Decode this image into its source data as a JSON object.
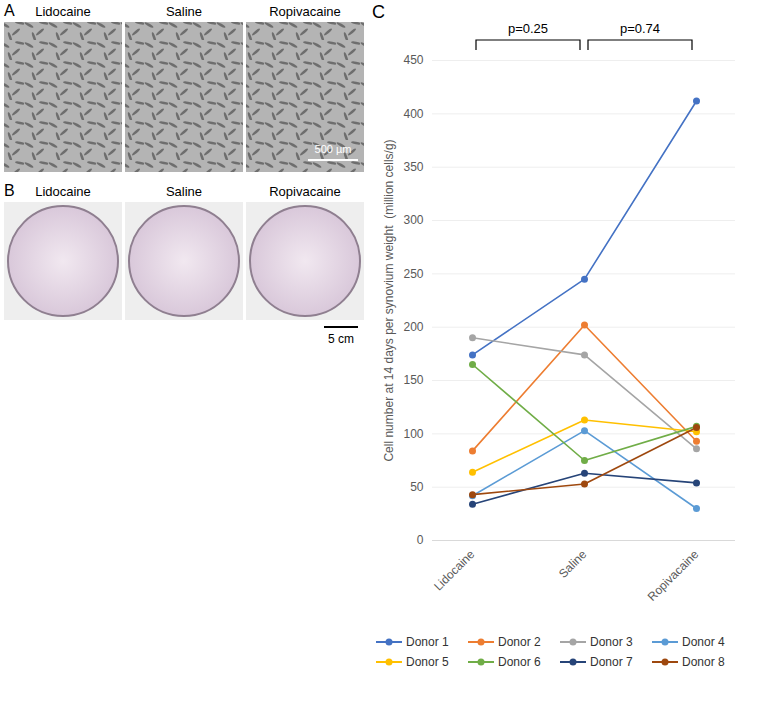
{
  "panels": [
    {
      "letter": "A",
      "captions": [
        "Lidocaine",
        "Saline",
        "Ropivacaine"
      ],
      "scale_bar": "500 µm"
    },
    {
      "letter": "B",
      "captions": [
        "Lidocaine",
        "Saline",
        "Ropivacaine"
      ],
      "scale_bar": "5 cm"
    }
  ],
  "chart_data": {
    "letter": "C",
    "type": "line",
    "ylabel": "Cell number at 14 days per synovium weight  (million cells/g)",
    "categories": [
      "Lidocaine",
      "Saline",
      "Ropivacaine"
    ],
    "series": [
      {
        "name": "Donor 1",
        "color": "#4472c4",
        "marker": "circle",
        "values": [
          174,
          245,
          412
        ]
      },
      {
        "name": "Donor 2",
        "color": "#ed7d31",
        "marker": "circle",
        "values": [
          84,
          202,
          93
        ]
      },
      {
        "name": "Donor 3",
        "color": "#a5a5a5",
        "marker": "circle",
        "values": [
          190,
          174,
          86
        ]
      },
      {
        "name": "Donor 4",
        "color": "#5b9bd5",
        "marker": "circle",
        "values": [
          42,
          103,
          30
        ]
      },
      {
        "name": "Donor 5",
        "color": "#ffc000",
        "marker": "circle",
        "values": [
          64,
          113,
          102
        ]
      },
      {
        "name": "Donor 6",
        "color": "#70ad47",
        "marker": "circle",
        "values": [
          165,
          75,
          107
        ]
      },
      {
        "name": "Donor 7",
        "color": "#264478",
        "marker": "circle",
        "values": [
          34,
          63,
          54
        ]
      },
      {
        "name": "Donor 8",
        "color": "#9e480e",
        "marker": "circle",
        "values": [
          43,
          53,
          106
        ]
      }
    ],
    "ylim": [
      0,
      450
    ],
    "yticks": [
      0,
      50,
      100,
      150,
      200,
      250,
      300,
      350,
      400,
      450
    ],
    "grid": true,
    "legend": "bottom",
    "annotations": [
      {
        "text": "p=0.25",
        "from": "Lidocaine",
        "to": "Saline"
      },
      {
        "text": "p=0.74",
        "from": "Saline",
        "to": "Ropivacaine"
      }
    ]
  }
}
